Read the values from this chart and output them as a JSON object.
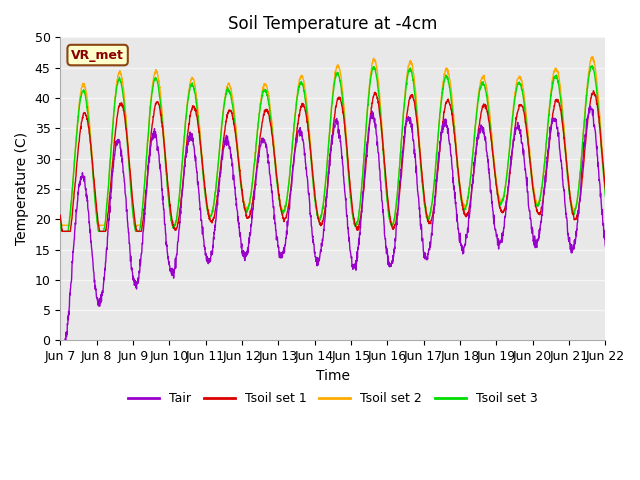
{
  "title": "Soil Temperature at -4cm",
  "xlabel": "Time",
  "ylabel": "Temperature (C)",
  "ylim": [
    0,
    50
  ],
  "yticks": [
    0,
    5,
    10,
    15,
    20,
    25,
    30,
    35,
    40,
    45,
    50
  ],
  "x_labels": [
    "Jun 7",
    "Jun 8",
    "Jun 9",
    "Jun 10",
    "Jun 11",
    "Jun 12",
    "Jun 13",
    "Jun 14",
    "Jun 15",
    "Jun 16",
    "Jun 17",
    "Jun 18",
    "Jun 19",
    "Jun 20",
    "Jun 21",
    "Jun 22"
  ],
  "annotation_text": "VR_met",
  "colors": {
    "Tair": "#9900cc",
    "Tsoil1": "#dd0000",
    "Tsoil2": "#ffaa00",
    "Tsoil3": "#00dd00"
  },
  "legend_labels": [
    "Tair",
    "Tsoil set 1",
    "Tsoil set 2",
    "Tsoil set 3"
  ],
  "fig_bg_color": "#ffffff",
  "plot_bg_color": "#e8e8e8",
  "grid_color": "#f5f5f5",
  "title_fontsize": 12,
  "label_fontsize": 10,
  "tick_fontsize": 9,
  "n_days": 15,
  "points_per_day": 144
}
